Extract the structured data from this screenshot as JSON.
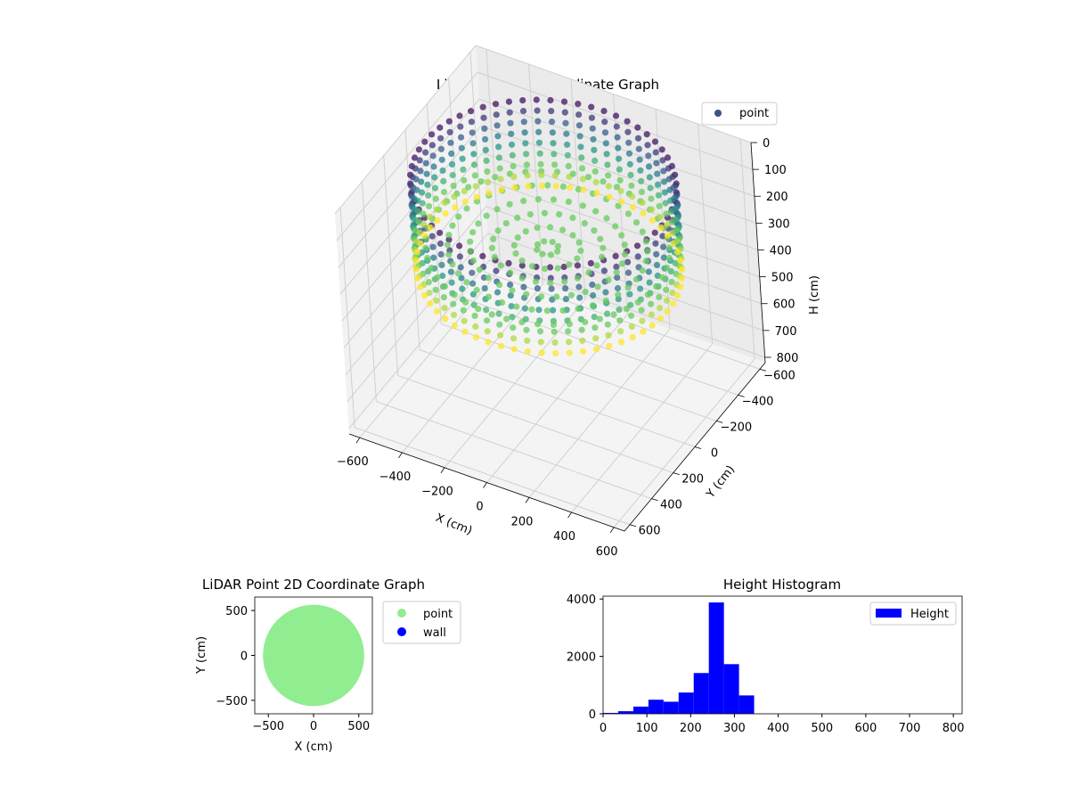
{
  "chart_data": [
    {
      "type": "scatter3d",
      "title": "LiDAR Point 3D Coordinate Graph",
      "xlabel": "X (cm)",
      "ylabel": "Y (cm)",
      "zlabel": "H (cm)",
      "xlim": [
        -650,
        650
      ],
      "ylim": [
        -650,
        650
      ],
      "zlim": [
        0,
        820
      ],
      "z_inverted": true,
      "xticks": [
        -600,
        -400,
        -200,
        0,
        200,
        400,
        600
      ],
      "yticks": [
        -600,
        -400,
        -200,
        0,
        200,
        400,
        600
      ],
      "zticks": [
        0,
        100,
        200,
        300,
        400,
        500,
        600,
        700,
        800
      ],
      "grid": true,
      "colormap": "viridis",
      "legend": {
        "position": "top-right",
        "entries": [
          {
            "name": "point",
            "color": "#3b528b"
          }
        ]
      },
      "series": [
        {
          "name": "point",
          "shape": "cylindrical wall ring with floor",
          "wall_radius": 560,
          "wall_height_range": [
            20,
            340
          ],
          "center": [
            0,
            0
          ]
        }
      ]
    },
    {
      "type": "scatter",
      "title": "LiDAR Point 2D Coordinate Graph",
      "xlabel": "X (cm)",
      "ylabel": "Y (cm)",
      "xlim": [
        -650,
        650
      ],
      "ylim": [
        -650,
        650
      ],
      "xticks": [
        -500,
        0,
        500
      ],
      "yticks": [
        -500,
        0,
        500
      ],
      "legend": {
        "position": "outside-right",
        "entries": [
          {
            "name": "point",
            "color": "#90ee90"
          },
          {
            "name": "wall",
            "color": "#0000ff"
          }
        ]
      },
      "series": [
        {
          "name": "point",
          "color": "#90ee90",
          "shape": "filled disc",
          "center": [
            0,
            0
          ],
          "radius": 560
        },
        {
          "name": "wall",
          "color": "#0000ff"
        }
      ]
    },
    {
      "type": "bar",
      "title": "Height Histogram",
      "xlabel": "",
      "ylabel": "",
      "xlim": [
        0,
        820
      ],
      "ylim": [
        0,
        4100
      ],
      "xticks": [
        0,
        100,
        200,
        300,
        400,
        500,
        600,
        700,
        800
      ],
      "yticks": [
        0,
        2000,
        4000
      ],
      "bin_width": 34.5,
      "bin_starts": [
        0,
        34.5,
        69,
        103.5,
        138,
        172.5,
        207,
        241.5,
        276,
        310.5
      ],
      "values": [
        30,
        90,
        250,
        490,
        420,
        740,
        1420,
        3880,
        1730,
        640
      ],
      "color": "#0000ff",
      "legend": {
        "position": "top-right",
        "entries": [
          {
            "name": "Height",
            "color": "#0000ff"
          }
        ]
      }
    }
  ]
}
